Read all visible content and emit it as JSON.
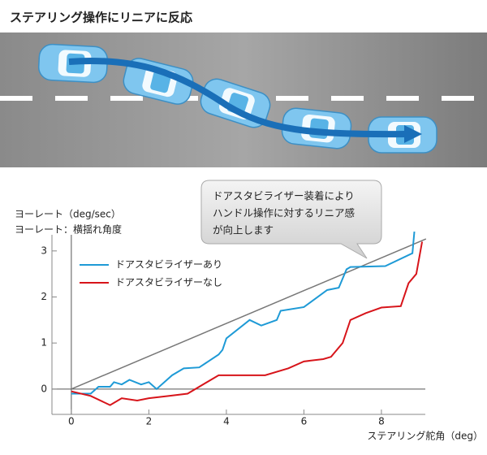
{
  "chart_data": {
    "type": "line",
    "title": "ステアリング操作にリニアに反応",
    "y_label": "ヨーレート（deg/sec）",
    "y_label_note": "ヨーレート：横揺れ角度",
    "x_label": "ステアリング舵角（deg）",
    "callout": [
      "ドアスタビライザー装着により",
      "ハンドル操作に対するリニア感",
      "が向上します"
    ],
    "xlim": [
      -0.5,
      9.3
    ],
    "ylim": [
      -0.55,
      3.35
    ],
    "xticks": [
      0,
      2,
      4,
      6,
      8
    ],
    "yticks": [
      0,
      1,
      2,
      3
    ],
    "legend": "upper left",
    "series": [
      {
        "name": "ドアスタビライザーあり",
        "color": "#1e9ad6",
        "x": [
          0,
          0.5,
          0.7,
          1,
          1.1,
          1.3,
          1.5,
          1.8,
          2,
          2.2,
          2.6,
          2.9,
          3.3,
          3.8,
          3.9,
          4,
          4.6,
          4.9,
          5.3,
          5.4,
          6,
          6.6,
          6.9,
          7.1,
          7.2,
          8.1,
          8.8,
          8.85
        ],
        "values": [
          -0.1,
          -0.1,
          0.05,
          0.05,
          0.15,
          0.1,
          0.2,
          0.1,
          0.15,
          0,
          0.3,
          0.45,
          0.47,
          0.75,
          0.85,
          1.1,
          1.5,
          1.38,
          1.5,
          1.7,
          1.78,
          2.15,
          2.2,
          2.6,
          2.65,
          2.67,
          2.95,
          3.42
        ]
      },
      {
        "name": "ドアスタビライザーなし",
        "color": "#d7141a",
        "x": [
          0,
          0.5,
          1,
          1.3,
          1.7,
          2,
          2.5,
          3,
          3.8,
          5,
          5.6,
          6,
          6.5,
          6.7,
          7,
          7.2,
          7.6,
          8,
          8.5,
          8.7,
          8.9,
          9.05
        ],
        "values": [
          -0.05,
          -0.15,
          -0.35,
          -0.2,
          -0.25,
          -0.2,
          -0.15,
          -0.1,
          0.3,
          0.3,
          0.45,
          0.6,
          0.65,
          0.7,
          1.0,
          1.5,
          1.65,
          1.77,
          1.8,
          2.3,
          2.5,
          3.2
        ]
      }
    ],
    "reference_line": {
      "color": "#777777",
      "x": [
        0,
        9.15
      ],
      "values": [
        0,
        3.26
      ]
    }
  }
}
